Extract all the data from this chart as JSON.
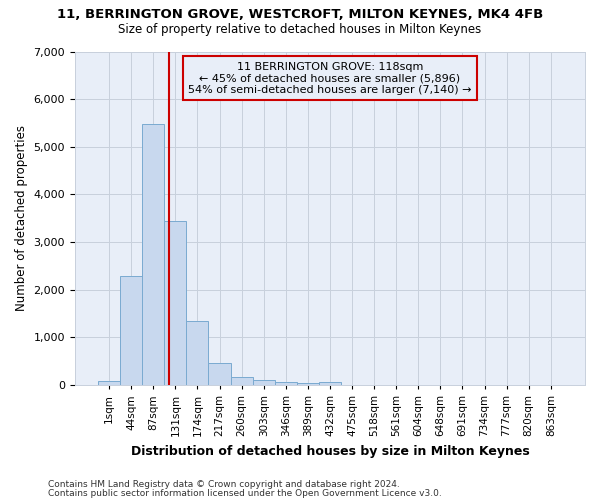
{
  "title": "11, BERRINGTON GROVE, WESTCROFT, MILTON KEYNES, MK4 4FB",
  "subtitle": "Size of property relative to detached houses in Milton Keynes",
  "xlabel": "Distribution of detached houses by size in Milton Keynes",
  "ylabel": "Number of detached properties",
  "footnote1": "Contains HM Land Registry data © Crown copyright and database right 2024.",
  "footnote2": "Contains public sector information licensed under the Open Government Licence v3.0.",
  "bar_labels": [
    "1sqm",
    "44sqm",
    "87sqm",
    "131sqm",
    "174sqm",
    "217sqm",
    "260sqm",
    "303sqm",
    "346sqm",
    "389sqm",
    "432sqm",
    "475sqm",
    "518sqm",
    "561sqm",
    "604sqm",
    "648sqm",
    "691sqm",
    "734sqm",
    "777sqm",
    "820sqm",
    "863sqm"
  ],
  "bar_values": [
    80,
    2280,
    5480,
    3440,
    1340,
    460,
    175,
    115,
    70,
    50,
    55,
    0,
    0,
    0,
    0,
    0,
    0,
    0,
    0,
    0,
    0
  ],
  "bar_color": "#c8d8ee",
  "bar_edge_color": "#7aaad0",
  "grid_color": "#c8d0dc",
  "bg_color": "#ffffff",
  "plot_bg_color": "#e8eef8",
  "vline_color": "#cc0000",
  "annotation_line1": "11 BERRINGTON GROVE: 118sqm",
  "annotation_line2": "← 45% of detached houses are smaller (5,896)",
  "annotation_line3": "54% of semi-detached houses are larger (7,140) →",
  "annotation_box_color": "#cc0000",
  "ylim": [
    0,
    7000
  ],
  "yticks": [
    0,
    1000,
    2000,
    3000,
    4000,
    5000,
    6000,
    7000
  ],
  "vline_pos": 2.705
}
